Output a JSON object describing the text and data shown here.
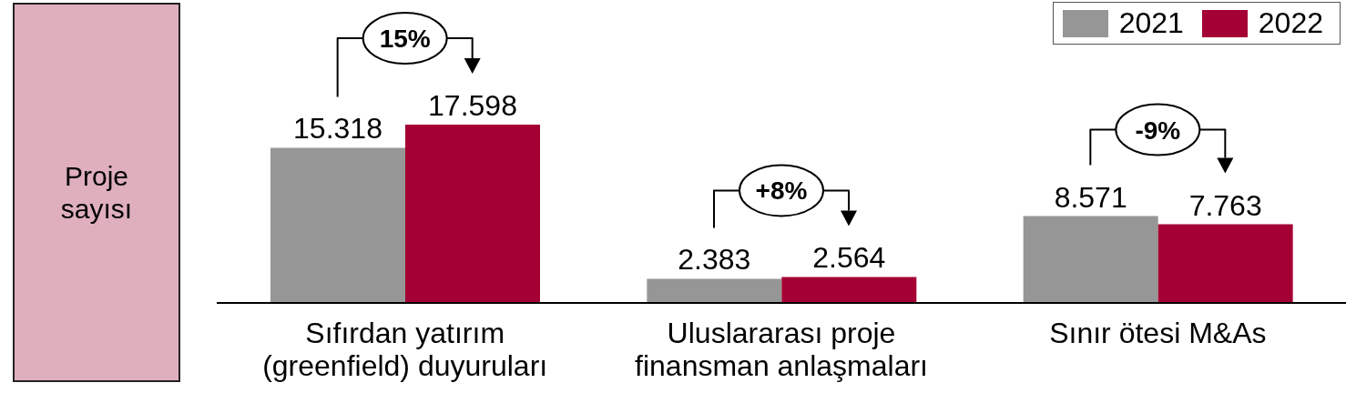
{
  "chart_data": {
    "type": "bar",
    "ylabel": "Proje sayısı",
    "categories": [
      "Sıfırdan yatırım (greenfield) duyuruları",
      "Uluslararası proje finansman anlaşmaları",
      "Sınır ötesi M&As"
    ],
    "series": [
      {
        "name": "2021",
        "color": "#969696",
        "values": [
          15318,
          2383,
          8571
        ],
        "value_labels": [
          "15.318",
          "2.383",
          "8.571"
        ]
      },
      {
        "name": "2022",
        "color": "#a50034",
        "values": [
          17598,
          2564,
          7763
        ],
        "value_labels": [
          "17.598",
          "2.564",
          "7.763"
        ]
      }
    ],
    "annotations": [
      "15%",
      "+8%",
      "-9%"
    ],
    "legend": "top right",
    "tick_labels": "x"
  }
}
